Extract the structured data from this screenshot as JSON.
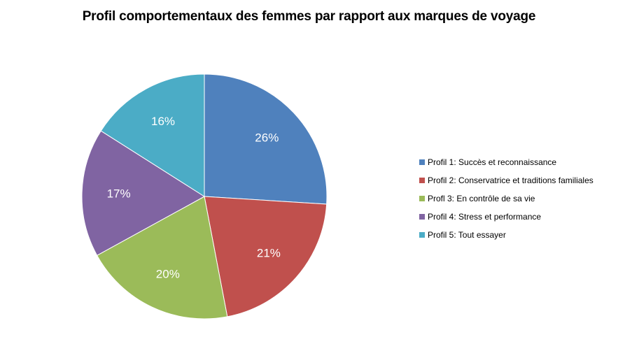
{
  "chart_data": {
    "type": "pie",
    "title": "Profil comportementaux des femmes par rapport aux marques de voyage",
    "categories": [
      "Profil 1: Succès et reconnaissance",
      "Profil 2: Conservatrice et traditions familiales",
      "Profl 3: En contrôle de sa vie",
      "Profil 4: Stress et performance",
      "Profil 5: Tout essayer"
    ],
    "values": [
      26,
      21,
      20,
      17,
      16
    ],
    "data_labels": [
      "26%",
      "21%",
      "20%",
      "17%",
      "16%"
    ],
    "colors": [
      "#4F81BD",
      "#C0504D",
      "#9BBB59",
      "#8064A2",
      "#4BACC6"
    ],
    "start_angle": "12 o'clock",
    "direction": "clockwise",
    "legend_position": "right"
  }
}
